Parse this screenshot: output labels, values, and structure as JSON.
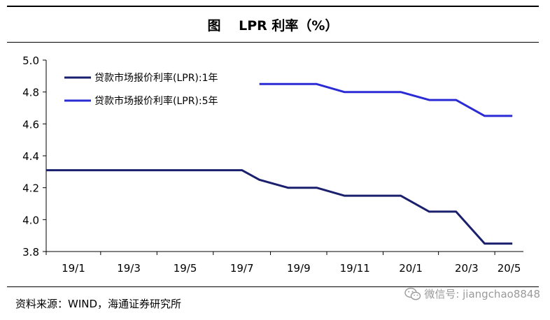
{
  "title": "图　 LPR 利率（%）",
  "source": "资料来源：WIND，海通证券研究所",
  "watermark": "微信号: jiangchao8848",
  "chart_data": {
    "type": "line",
    "title": "图　 LPR 利率（%）",
    "x_ticks": [
      "19/1",
      "19/3",
      "19/5",
      "19/7",
      "19/9",
      "19/11",
      "20/1",
      "20/3",
      "20/5"
    ],
    "xlim": [
      "2019-01",
      "2020-06"
    ],
    "ylim": [
      3.8,
      5.0
    ],
    "y_ticks": [
      "3.8",
      "4.0",
      "4.2",
      "4.4",
      "4.6",
      "4.8",
      "5.0"
    ],
    "grid": false,
    "legend_position": "top-left",
    "series": [
      {
        "name": "贷款市场报价利率(LPR):1年",
        "color": "#1a1f6e",
        "points": [
          {
            "x": "2019-01",
            "y": 4.31
          },
          {
            "x": "2019-08",
            "y": 4.31
          },
          {
            "x": "2019-08-20",
            "y": 4.25
          },
          {
            "x": "2019-09-20",
            "y": 4.2
          },
          {
            "x": "2019-10-21",
            "y": 4.2
          },
          {
            "x": "2019-11-20",
            "y": 4.15
          },
          {
            "x": "2020-01-20",
            "y": 4.15
          },
          {
            "x": "2020-02-20",
            "y": 4.05
          },
          {
            "x": "2020-03-20",
            "y": 4.05
          },
          {
            "x": "2020-04-20",
            "y": 3.85
          },
          {
            "x": "2020-05-20",
            "y": 3.85
          }
        ]
      },
      {
        "name": "贷款市场报价利率(LPR):5年",
        "color": "#2b2bd6",
        "points": [
          {
            "x": "2019-08-20",
            "y": 4.85
          },
          {
            "x": "2019-10-21",
            "y": 4.85
          },
          {
            "x": "2019-11-20",
            "y": 4.8
          },
          {
            "x": "2020-01-20",
            "y": 4.8
          },
          {
            "x": "2020-02-20",
            "y": 4.75
          },
          {
            "x": "2020-03-20",
            "y": 4.75
          },
          {
            "x": "2020-04-20",
            "y": 4.65
          },
          {
            "x": "2020-05-20",
            "y": 4.65
          }
        ]
      }
    ]
  }
}
